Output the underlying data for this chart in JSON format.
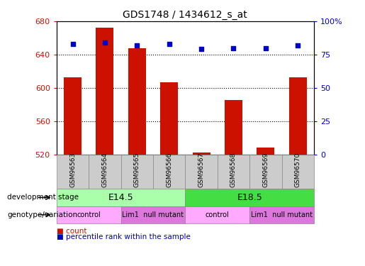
{
  "title": "GDS1748 / 1434612_s_at",
  "samples": [
    "GSM96563",
    "GSM96564",
    "GSM96565",
    "GSM96566",
    "GSM96567",
    "GSM96568",
    "GSM96569",
    "GSM96570"
  ],
  "counts": [
    613,
    672,
    648,
    607,
    522,
    585,
    528,
    613
  ],
  "percentiles": [
    83,
    84,
    82,
    83,
    79,
    80,
    80,
    82
  ],
  "ylim_left": [
    520,
    680
  ],
  "ylim_right": [
    0,
    100
  ],
  "yticks_left": [
    520,
    560,
    600,
    640,
    680
  ],
  "yticks_right": [
    0,
    25,
    50,
    75,
    100
  ],
  "bar_color": "#CC1100",
  "dot_color": "#0000CC",
  "background_plot": "#FFFFFF",
  "development_stages": [
    {
      "label": "E14.5",
      "start": 0,
      "end": 4,
      "color": "#AAFFAA"
    },
    {
      "label": "E18.5",
      "start": 4,
      "end": 8,
      "color": "#44DD44"
    }
  ],
  "genotype_groups": [
    {
      "label": "control",
      "start": 0,
      "end": 2,
      "color": "#FFAAFF"
    },
    {
      "label": "Lim1  null mutant",
      "start": 2,
      "end": 4,
      "color": "#DD77DD"
    },
    {
      "label": "control",
      "start": 4,
      "end": 6,
      "color": "#FFAAFF"
    },
    {
      "label": "Lim1  null mutant",
      "start": 6,
      "end": 8,
      "color": "#DD77DD"
    }
  ],
  "legend_count_color": "#CC1100",
  "legend_dot_color": "#0000CC",
  "tick_label_color_left": "#CC1100",
  "tick_label_color_right": "#0000CC",
  "sample_box_color": "#CCCCCC",
  "dev_label": "development stage",
  "geno_label": "genotype/variation",
  "legend_count_text": "count",
  "legend_pct_text": "percentile rank within the sample",
  "right_tick_labels": [
    "0",
    "25",
    "50",
    "75",
    "100%"
  ]
}
